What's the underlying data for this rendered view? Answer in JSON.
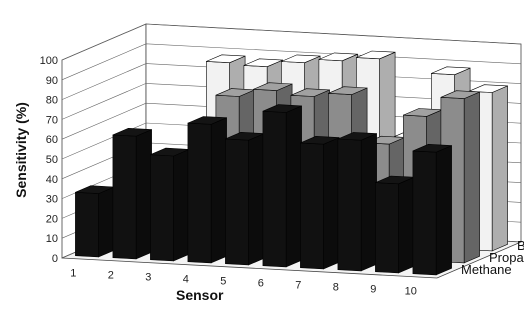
{
  "chart_data": {
    "type": "bar",
    "title": "",
    "xlabel": "Sensor",
    "ylabel": "Sensitivity (%)",
    "ylim": [
      0,
      100
    ],
    "yticks": [
      0,
      10,
      20,
      30,
      40,
      50,
      60,
      70,
      80,
      90,
      100
    ],
    "categories": [
      "1",
      "2",
      "3",
      "4",
      "5",
      "6",
      "7",
      "8",
      "9",
      "10"
    ],
    "grid": true,
    "series": [
      {
        "name": "Methane",
        "color": "#111111",
        "values": [
          32,
          62,
          53,
          70,
          63,
          78,
          63,
          66,
          45,
          62
        ]
      },
      {
        "name": "Propane",
        "color": "#8c8c8c",
        "values": [
          0,
          0,
          0,
          78,
          82,
          80,
          82,
          58,
          73,
          83
        ]
      },
      {
        "name": "Butane",
        "color": "#f2f2f2",
        "values": [
          0,
          0,
          88,
          87,
          90,
          92,
          94,
          55,
          88,
          80
        ]
      }
    ]
  }
}
